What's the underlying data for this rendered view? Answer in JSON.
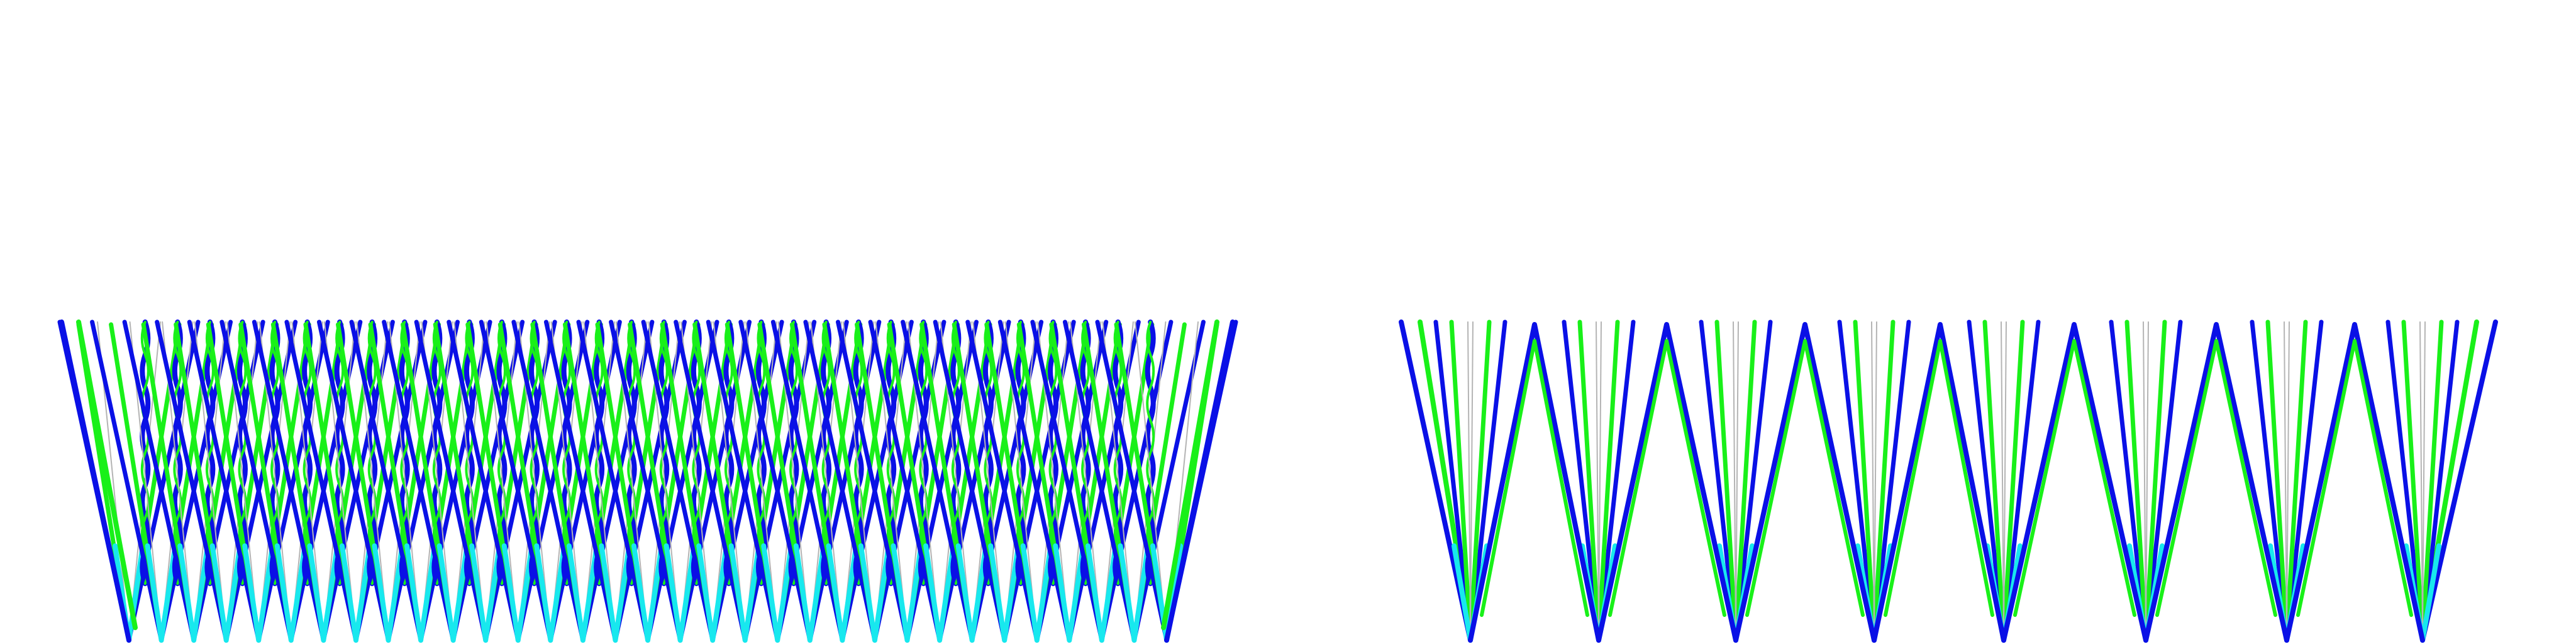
{
  "colors": {
    "background": "#ffffff",
    "blue": "#0a10e6",
    "green": "#19f019",
    "cyan": "#18e8ee",
    "gray": "#b4b4b4"
  },
  "panels": {
    "left": {
      "name": "dense-spike-pattern",
      "repeat_count": 33
    },
    "right": {
      "name": "sparse-spike-pattern",
      "repeat_count": 8
    }
  }
}
